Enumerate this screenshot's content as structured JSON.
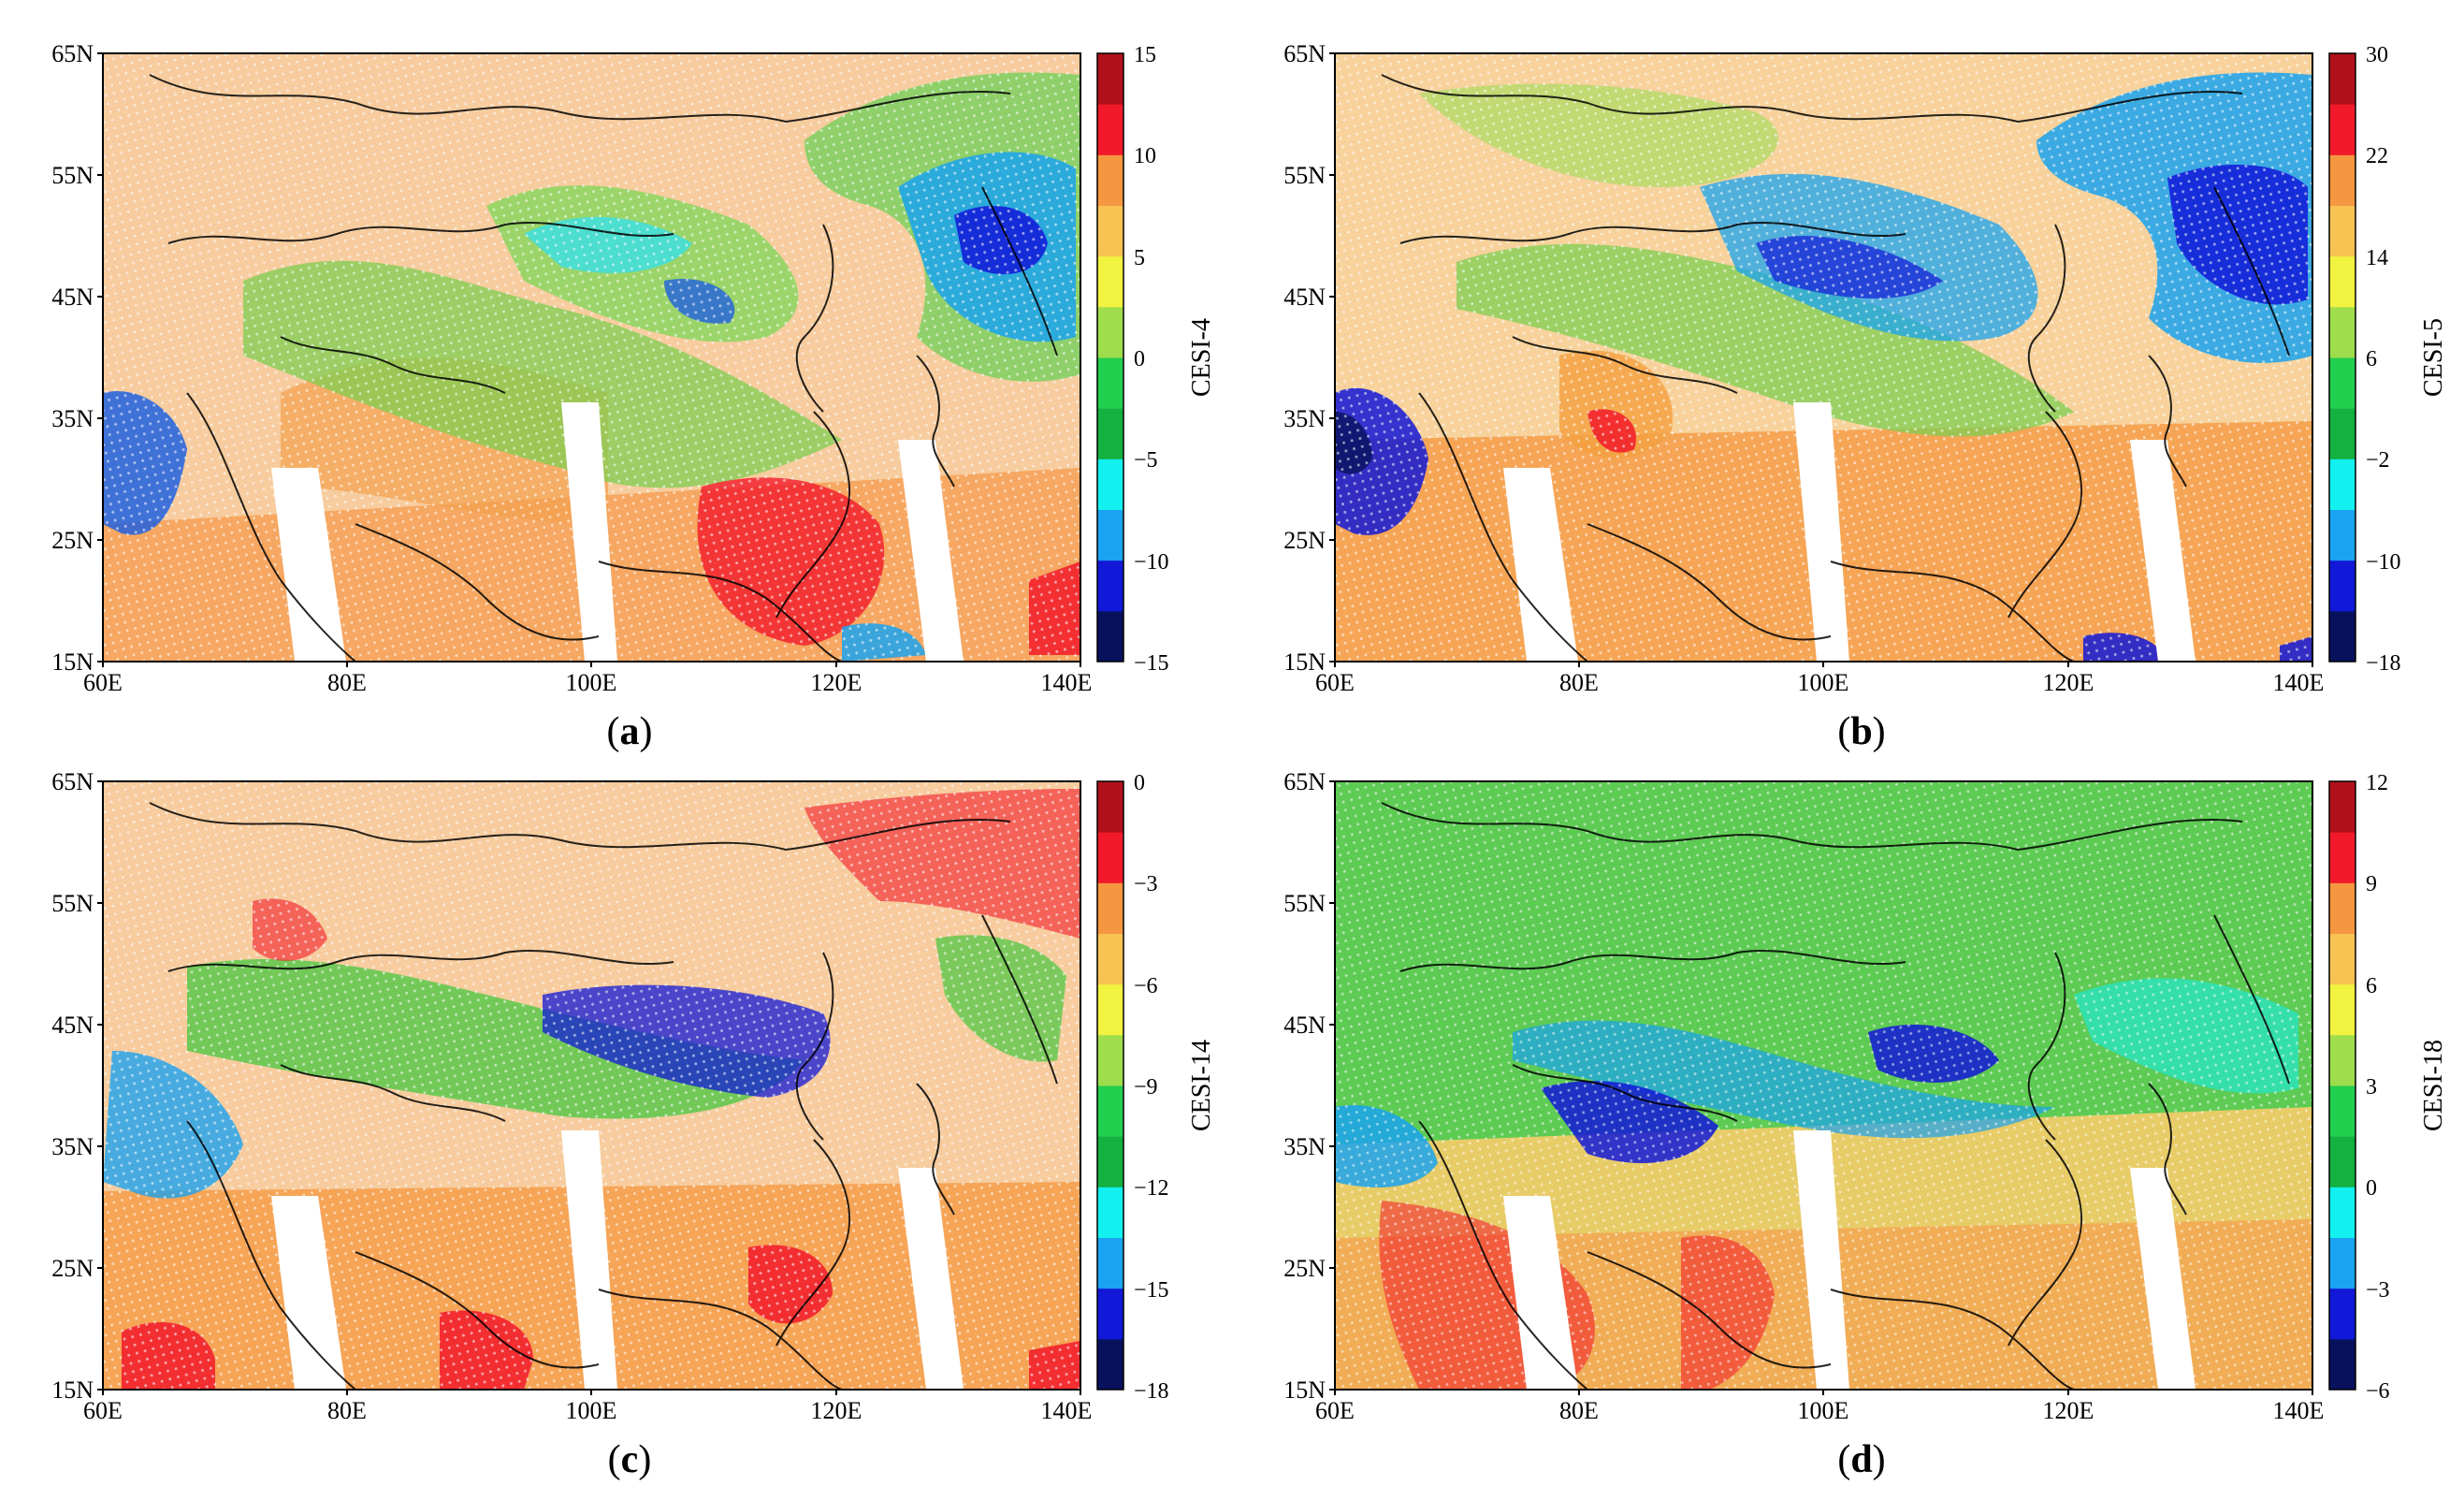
{
  "figure": {
    "lat_ticks": [
      "65N",
      "55N",
      "45N",
      "35N",
      "25N",
      "15N"
    ],
    "lon_ticks": [
      "60E",
      "80E",
      "100E",
      "120E",
      "140E"
    ],
    "colors": {
      "colorbar": [
        "#08115c",
        "#1218d8",
        "#1aa3f0",
        "#12f0f0",
        "#14b040",
        "#22d050",
        "#9fdd4c",
        "#f2f240",
        "#f8c352",
        "#f59640",
        "#f21a2a",
        "#b0101a"
      ],
      "map_background": "#f6c89a",
      "scan_gap": "#ffffff",
      "coastline": "#000000"
    },
    "panels": [
      {
        "id": "a",
        "label": "(a)",
        "label_letter": "a",
        "colorbar_title": "CESI-4",
        "colorbar_ticks": [
          "15",
          "10",
          "5",
          "0",
          "−5",
          "−10",
          "−15"
        ]
      },
      {
        "id": "b",
        "label": "(b)",
        "label_letter": "b",
        "colorbar_title": "CESI-5",
        "colorbar_ticks": [
          "30",
          "22",
          "14",
          "6",
          "−2",
          "−10",
          "−18"
        ]
      },
      {
        "id": "c",
        "label": "(c)",
        "label_letter": "c",
        "colorbar_title": "CESI-14",
        "colorbar_ticks": [
          "0",
          "−3",
          "−6",
          "−9",
          "−12",
          "−15",
          "−18"
        ]
      },
      {
        "id": "d",
        "label": "(d)",
        "label_letter": "d",
        "colorbar_title": "CESI-18",
        "colorbar_ticks": [
          "12",
          "9",
          "6",
          "3",
          "0",
          "−3",
          "−6"
        ]
      }
    ]
  }
}
